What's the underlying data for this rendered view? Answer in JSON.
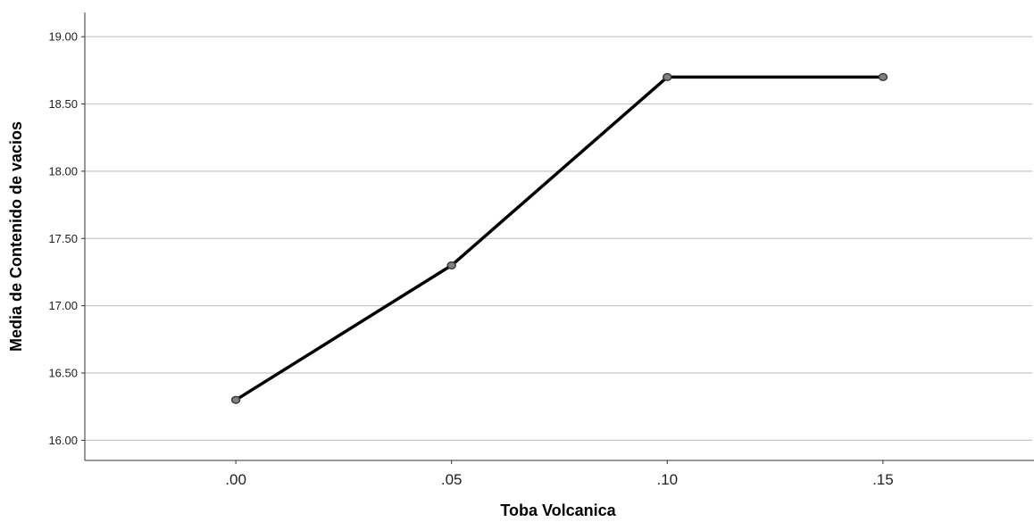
{
  "chart_data": {
    "type": "line",
    "title": "",
    "xlabel": "Toba Volcanica",
    "ylabel": "Media de Contenido de vacios",
    "x": [
      0.0,
      0.05,
      0.1,
      0.15
    ],
    "x_tick_labels": [
      ".00",
      ".05",
      ".10",
      ".15"
    ],
    "series": [
      {
        "values": [
          16.3,
          17.3,
          18.7,
          18.7
        ]
      }
    ],
    "y_ticks": [
      16.0,
      16.5,
      17.0,
      17.5,
      18.0,
      18.5,
      19.0
    ],
    "y_tick_labels": [
      "16.00",
      "16.50",
      "17.00",
      "17.50",
      "18.00",
      "18.50",
      "19.00"
    ],
    "ylim": [
      15.85,
      19.18
    ],
    "xlim": [
      -0.035,
      0.185
    ],
    "grid": true,
    "grid_axis": "y",
    "colors": {
      "line": "#000000",
      "marker_fill": "#808080",
      "marker_edge": "#3a3a3a",
      "grid": "#c8c8c8"
    }
  }
}
